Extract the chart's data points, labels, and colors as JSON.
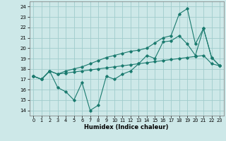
{
  "xlabel": "Humidex (Indice chaleur)",
  "xlim": [
    -0.5,
    23.5
  ],
  "ylim": [
    13.5,
    24.5
  ],
  "yticks": [
    14,
    15,
    16,
    17,
    18,
    19,
    20,
    21,
    22,
    23,
    24
  ],
  "xticks": [
    0,
    1,
    2,
    3,
    4,
    5,
    6,
    7,
    8,
    9,
    10,
    11,
    12,
    13,
    14,
    15,
    16,
    17,
    18,
    19,
    20,
    21,
    22,
    23
  ],
  "background_color": "#cde8e8",
  "grid_color": "#a0cccc",
  "line_color": "#1a7a6e",
  "line1_x": [
    0,
    1,
    2,
    3,
    4,
    5,
    6,
    7,
    8,
    9,
    10,
    11,
    12,
    13,
    14,
    15,
    16,
    17,
    18,
    19,
    20,
    21,
    22,
    23
  ],
  "line1_y": [
    17.3,
    17.0,
    17.8,
    16.2,
    15.8,
    15.0,
    16.7,
    14.0,
    14.5,
    17.3,
    17.0,
    17.5,
    17.8,
    18.5,
    19.3,
    19.0,
    20.6,
    20.7,
    21.2,
    20.4,
    19.3,
    21.9,
    19.1,
    18.3
  ],
  "line2_x": [
    0,
    1,
    2,
    3,
    4,
    5,
    6,
    7,
    8,
    9,
    10,
    11,
    12,
    13,
    14,
    15,
    16,
    17,
    18,
    19,
    20,
    21,
    22,
    23
  ],
  "line2_y": [
    17.3,
    17.0,
    17.8,
    17.5,
    17.8,
    18.0,
    18.2,
    18.5,
    18.8,
    19.1,
    19.3,
    19.5,
    19.7,
    19.8,
    20.0,
    20.5,
    21.0,
    21.2,
    23.3,
    23.8,
    20.4,
    21.9,
    19.1,
    18.3
  ],
  "line3_x": [
    0,
    1,
    2,
    3,
    4,
    5,
    6,
    7,
    8,
    9,
    10,
    11,
    12,
    13,
    14,
    15,
    16,
    17,
    18,
    19,
    20,
    21,
    22,
    23
  ],
  "line3_y": [
    17.3,
    17.0,
    17.8,
    17.5,
    17.6,
    17.7,
    17.8,
    17.9,
    18.0,
    18.1,
    18.2,
    18.3,
    18.4,
    18.5,
    18.6,
    18.7,
    18.8,
    18.9,
    19.0,
    19.1,
    19.2,
    19.3,
    18.5,
    18.3
  ]
}
